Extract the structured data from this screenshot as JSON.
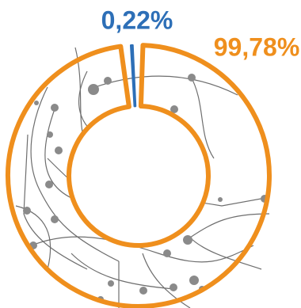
{
  "chart_data": {
    "type": "pie",
    "values": [
      0.22,
      99.78
    ],
    "value_labels": [
      "0,22%",
      "99,78%"
    ],
    "colors": [
      "#2d6fb7",
      "#ef8f1d"
    ]
  }
}
